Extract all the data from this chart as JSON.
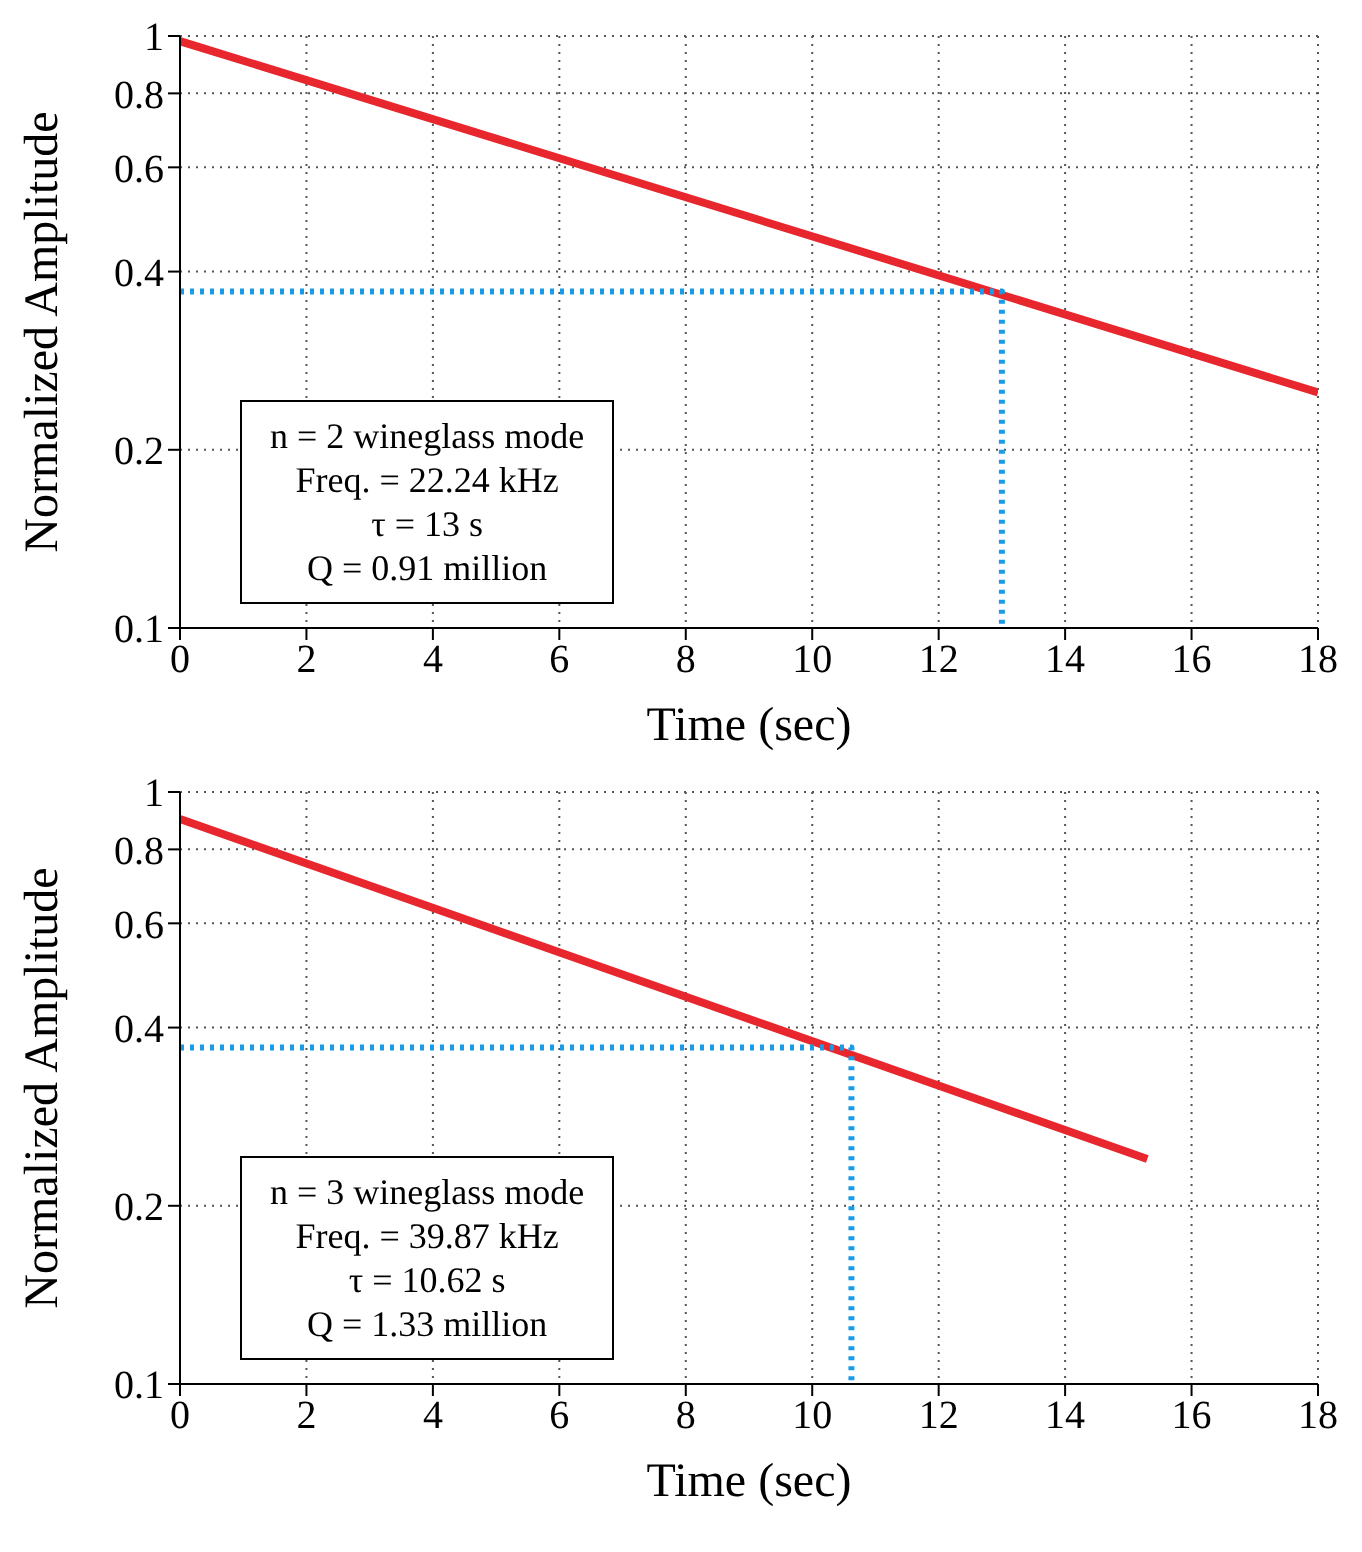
{
  "chart_data": [
    {
      "type": "line",
      "xlabel": "Time (sec)",
      "ylabel": "Normalized Amplitude",
      "log": "y",
      "grid": true,
      "line_style": "solid",
      "marker": "none",
      "legend": false,
      "xlim": [
        0,
        18
      ],
      "xticks": [
        0,
        2,
        4,
        6,
        8,
        10,
        12,
        14,
        16,
        18
      ],
      "ylim": [
        0.1,
        1
      ],
      "yticks": [
        0.1,
        0.2,
        0.4,
        0.6,
        0.8,
        1
      ],
      "annotations": [
        "n = 2 wineglass mode",
        "Freq. = 22.24 kHz",
        "τ = 13 s",
        "Q = 0.91 million"
      ],
      "series": [
        {
          "color": "#e8262e",
          "x": [
            0,
            18
          ],
          "values": [
            0.98,
            0.25
          ]
        },
        {
          "color": "#1a9be6",
          "line_style": "dotted",
          "x": [
            0,
            13,
            13
          ],
          "values": [
            0.37,
            0.37,
            0.1
          ]
        }
      ]
    },
    {
      "type": "line",
      "xlabel": "Time (sec)",
      "ylabel": "Normalized Amplitude",
      "log": "y",
      "grid": true,
      "line_style": "solid",
      "marker": "none",
      "legend": false,
      "xlim": [
        0,
        18
      ],
      "xticks": [
        0,
        2,
        4,
        6,
        8,
        10,
        12,
        14,
        16,
        18
      ],
      "ylim": [
        0.1,
        1
      ],
      "yticks": [
        0.1,
        0.2,
        0.4,
        0.6,
        0.8,
        1
      ],
      "annotations": [
        "n = 3 wineglass mode",
        "Freq. = 39.87 kHz",
        "τ = 10.62 s",
        "Q = 1.33 million"
      ],
      "series": [
        {
          "color": "#e8262e",
          "x": [
            0,
            15.3
          ],
          "values": [
            0.9,
            0.24
          ]
        },
        {
          "color": "#1a9be6",
          "line_style": "dotted",
          "x": [
            0,
            10.62,
            10.62
          ],
          "values": [
            0.37,
            0.37,
            0.1
          ]
        }
      ]
    }
  ]
}
